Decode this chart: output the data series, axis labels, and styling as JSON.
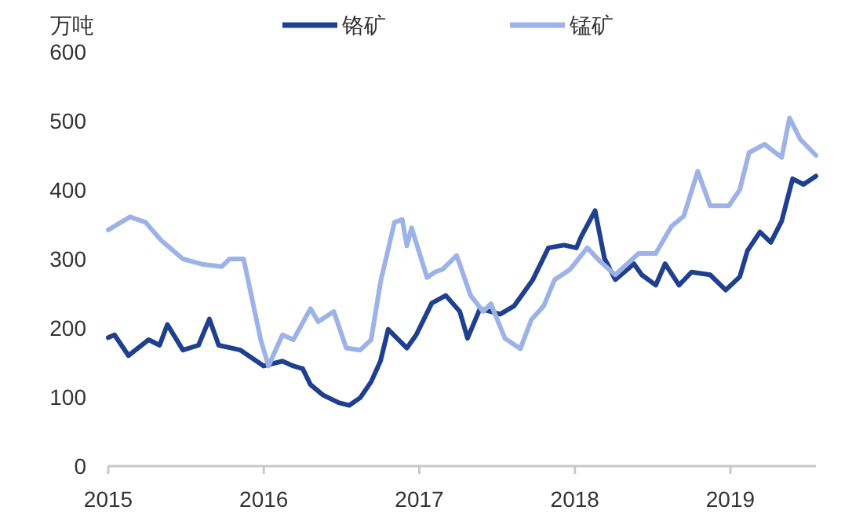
{
  "chart_data": {
    "type": "line",
    "ylabel": "万吨",
    "xlim": [
      2015,
      2019.55
    ],
    "xticks": [
      2015,
      2016,
      2017,
      2018,
      2019
    ],
    "ylim": [
      0,
      600
    ],
    "yticks": [
      0,
      100,
      200,
      300,
      400,
      500,
      600
    ],
    "grid": false,
    "legend": "top",
    "marker": "none",
    "line_style": "solid",
    "series": [
      {
        "name": "铬矿",
        "color": "#1f3f8f",
        "x": [
          2015.0,
          2015.04,
          2015.13,
          2015.26,
          2015.33,
          2015.38,
          2015.48,
          2015.58,
          2015.65,
          2015.71,
          2015.85,
          2016.0,
          2016.12,
          2016.19,
          2016.25,
          2016.3,
          2016.38,
          2016.48,
          2016.55,
          2016.62,
          2016.69,
          2016.75,
          2016.8,
          2016.92,
          2016.98,
          2017.08,
          2017.17,
          2017.26,
          2017.31,
          2017.39,
          2017.52,
          2017.61,
          2017.73,
          2017.83,
          2017.93,
          2018.01,
          2018.04,
          2018.13,
          2018.19,
          2018.26,
          2018.38,
          2018.43,
          2018.52,
          2018.58,
          2018.67,
          2018.75,
          2018.87,
          2018.97,
          2019.06,
          2019.11,
          2019.19,
          2019.26,
          2019.33,
          2019.4,
          2019.47,
          2019.55
        ],
        "values": [
          186,
          190,
          160,
          183,
          175,
          205,
          168,
          175,
          213,
          175,
          168,
          145,
          152,
          145,
          141,
          118,
          103,
          92,
          88,
          99,
          122,
          152,
          198,
          171,
          190,
          236,
          247,
          224,
          185,
          228,
          220,
          232,
          270,
          316,
          320,
          316,
          332,
          370,
          301,
          270,
          293,
          277,
          262,
          293,
          262,
          281,
          277,
          255,
          274,
          312,
          339,
          324,
          355,
          416,
          408,
          420
        ]
      },
      {
        "name": "锰矿",
        "color": "#9db3e8",
        "x": [
          2015.0,
          2015.14,
          2015.24,
          2015.34,
          2015.48,
          2015.61,
          2015.73,
          2015.78,
          2015.87,
          2015.98,
          2016.03,
          2016.12,
          2016.19,
          2016.3,
          2016.35,
          2016.45,
          2016.53,
          2016.62,
          2016.69,
          2016.75,
          2016.84,
          2016.89,
          2016.92,
          2016.95,
          2017.05,
          2017.1,
          2017.15,
          2017.24,
          2017.33,
          2017.41,
          2017.46,
          2017.55,
          2017.65,
          2017.72,
          2017.8,
          2017.87,
          2017.97,
          2018.08,
          2018.16,
          2018.26,
          2018.41,
          2018.52,
          2018.62,
          2018.7,
          2018.79,
          2018.87,
          2018.99,
          2019.06,
          2019.12,
          2019.22,
          2019.33,
          2019.38,
          2019.45,
          2019.55
        ],
        "values": [
          342,
          361,
          353,
          327,
          300,
          292,
          289,
          300,
          300,
          183,
          145,
          190,
          183,
          228,
          209,
          224,
          171,
          168,
          183,
          266,
          353,
          357,
          319,
          345,
          273,
          281,
          285,
          305,
          247,
          224,
          235,
          185,
          170,
          212,
          232,
          270,
          285,
          316,
          297,
          277,
          308,
          308,
          347,
          362,
          427,
          377,
          377,
          400,
          454,
          466,
          447,
          504,
          473,
          450
        ]
      }
    ]
  }
}
